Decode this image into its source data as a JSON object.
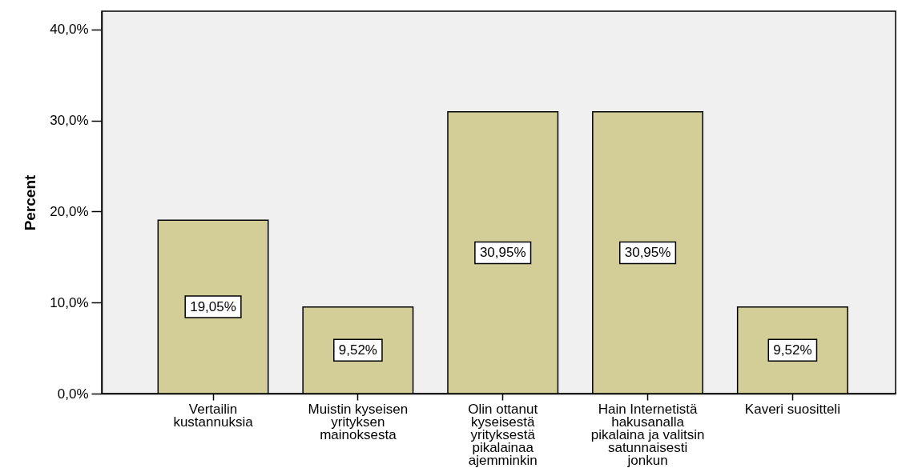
{
  "chart_data": {
    "type": "bar",
    "ylabel": "Percent",
    "categories": [
      "Vertailin kustannuksia",
      "Muistin kyseisen yrityksen mainoksesta",
      "Olin ottanut kyseisestä yrityksestä pikalainaa ajemminkin",
      "Hain Internetistä hakusanalla pikalaina ja valitsin satunnaisesti jonkun",
      "Kaveri suositteli"
    ],
    "values": [
      19.05,
      9.52,
      30.95,
      30.95,
      9.52
    ],
    "color": "#d3ce98",
    "value_labels": [
      "19,05%",
      "9,52%",
      "30,95%",
      "30,95%",
      "9,52%"
    ],
    "ylim": [
      0,
      42
    ],
    "yticks": [
      {
        "value": 0,
        "label": "0,0%"
      },
      {
        "value": 10,
        "label": "10,0%"
      },
      {
        "value": 20,
        "label": "20,0%"
      },
      {
        "value": 30,
        "label": "30,0%"
      },
      {
        "value": 40,
        "label": "40,0%"
      }
    ]
  }
}
